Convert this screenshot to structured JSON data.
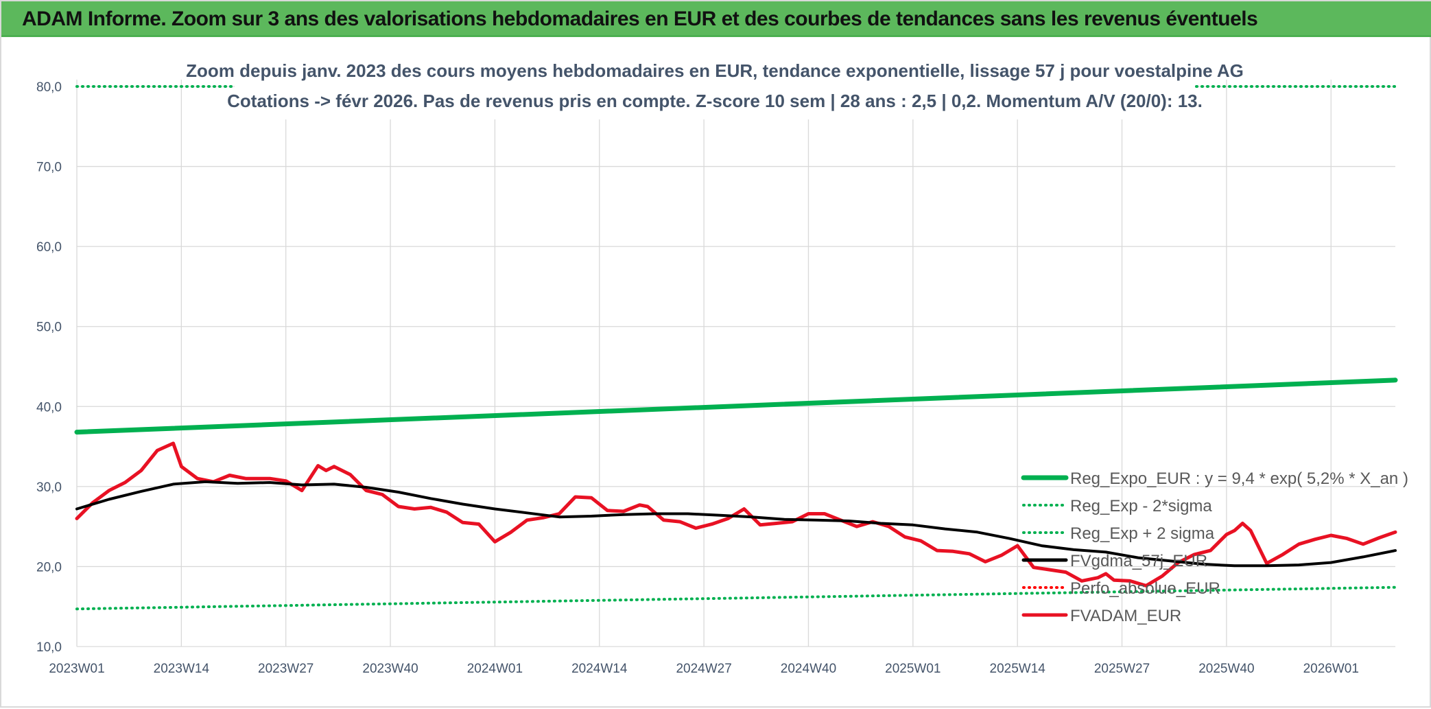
{
  "banner": {
    "title": "ADAM Informe. Zoom sur 3 ans des valorisations hebdomadaires en EUR et des courbes de tendances sans les revenus éventuels"
  },
  "colors": {
    "banner_bg": "#5cb85c",
    "reg_expo": "#00b050",
    "fvgdma": "#000000",
    "fvadam": "#e81123",
    "perfo": "#ff0000",
    "grid": "#d9d9d9",
    "axis_text": "#44546a"
  },
  "chart_data": {
    "type": "line",
    "title_lines": [
      "Zoom depuis janv. 2023 des cours moyens hebdomadaires en EUR, tendance exponentielle, lissage 57 j pour voestalpine AG",
      "Cotations -> févr 2026. Pas de revenus pris en compte. Z-score 10 sem | 28 ans : 2,5 | 0,2. Momentum A/V (20/0): 13."
    ],
    "ylim": [
      10,
      80
    ],
    "y_ticks": [
      "10,0",
      "20,0",
      "30,0",
      "40,0",
      "50,0",
      "60,0",
      "70,0",
      "80,0"
    ],
    "x_ticks": [
      {
        "index": 0,
        "label": "2023W01"
      },
      {
        "index": 13,
        "label": "2023W14"
      },
      {
        "index": 26,
        "label": "2023W27"
      },
      {
        "index": 39,
        "label": "2023W40"
      },
      {
        "index": 52,
        "label": "2024W01"
      },
      {
        "index": 65,
        "label": "2024W14"
      },
      {
        "index": 78,
        "label": "2024W27"
      },
      {
        "index": 91,
        "label": "2024W40"
      },
      {
        "index": 104,
        "label": "2025W01"
      },
      {
        "index": 117,
        "label": "2025W14"
      },
      {
        "index": 130,
        "label": "2025W27"
      },
      {
        "index": 143,
        "label": "2025W40"
      },
      {
        "index": 156,
        "label": "2026W01"
      }
    ],
    "x_count": 165,
    "grid": true,
    "legend_position": "right",
    "series": [
      {
        "name": "Reg_Expo_EUR : y = 9,4 * exp( 5,2% *  X_an )",
        "style": "solid-thick",
        "color": "#00b050",
        "points": [
          [
            0,
            36.8
          ],
          [
            164,
            43.3
          ]
        ]
      },
      {
        "name": "Reg_Exp - 2*sigma",
        "style": "dotted",
        "color": "#00b050",
        "points": [
          [
            0,
            14.7
          ],
          [
            164,
            17.4
          ]
        ]
      },
      {
        "name": "Reg_Exp + 2 sigma",
        "style": "dotted",
        "color": "#00b050",
        "points": [
          [
            0,
            80.0
          ],
          [
            164,
            80.0
          ]
        ]
      },
      {
        "name": "FVgdma_57j_EUR",
        "style": "solid",
        "color": "#000000",
        "points": [
          [
            0,
            27.2
          ],
          [
            4,
            28.4
          ],
          [
            8,
            29.4
          ],
          [
            12,
            30.3
          ],
          [
            16,
            30.6
          ],
          [
            20,
            30.4
          ],
          [
            24,
            30.5
          ],
          [
            28,
            30.2
          ],
          [
            32,
            30.3
          ],
          [
            36,
            29.9
          ],
          [
            40,
            29.3
          ],
          [
            44,
            28.5
          ],
          [
            48,
            27.8
          ],
          [
            52,
            27.2
          ],
          [
            56,
            26.7
          ],
          [
            60,
            26.2
          ],
          [
            64,
            26.3
          ],
          [
            68,
            26.5
          ],
          [
            72,
            26.6
          ],
          [
            76,
            26.6
          ],
          [
            80,
            26.4
          ],
          [
            84,
            26.2
          ],
          [
            88,
            25.9
          ],
          [
            92,
            25.8
          ],
          [
            96,
            25.7
          ],
          [
            100,
            25.4
          ],
          [
            104,
            25.2
          ],
          [
            108,
            24.7
          ],
          [
            112,
            24.3
          ],
          [
            116,
            23.5
          ],
          [
            120,
            22.6
          ],
          [
            124,
            22.1
          ],
          [
            128,
            21.8
          ],
          [
            132,
            21.1
          ],
          [
            136,
            20.7
          ],
          [
            140,
            20.3
          ],
          [
            144,
            20.1
          ],
          [
            148,
            20.1
          ],
          [
            152,
            20.2
          ],
          [
            156,
            20.5
          ],
          [
            160,
            21.2
          ],
          [
            164,
            22.0
          ]
        ]
      },
      {
        "name": "Perfo_absolue_EUR",
        "style": "dotted",
        "color": "#ff0000",
        "points": []
      },
      {
        "name": "FVADAM_EUR",
        "style": "solid",
        "color": "#e81123",
        "points": [
          [
            0,
            26.0
          ],
          [
            2,
            28.0
          ],
          [
            4,
            29.5
          ],
          [
            6,
            30.5
          ],
          [
            8,
            32.0
          ],
          [
            10,
            34.5
          ],
          [
            12,
            35.4
          ],
          [
            13,
            32.5
          ],
          [
            15,
            31.0
          ],
          [
            17,
            30.6
          ],
          [
            19,
            31.4
          ],
          [
            21,
            31.0
          ],
          [
            24,
            31.0
          ],
          [
            26,
            30.7
          ],
          [
            28,
            29.5
          ],
          [
            30,
            32.6
          ],
          [
            31,
            32.0
          ],
          [
            32,
            32.5
          ],
          [
            34,
            31.5
          ],
          [
            36,
            29.5
          ],
          [
            38,
            29.0
          ],
          [
            40,
            27.5
          ],
          [
            42,
            27.2
          ],
          [
            44,
            27.4
          ],
          [
            46,
            26.8
          ],
          [
            48,
            25.5
          ],
          [
            50,
            25.3
          ],
          [
            52,
            23.1
          ],
          [
            54,
            24.3
          ],
          [
            56,
            25.8
          ],
          [
            58,
            26.1
          ],
          [
            60,
            26.6
          ],
          [
            62,
            28.7
          ],
          [
            64,
            28.6
          ],
          [
            66,
            27.0
          ],
          [
            68,
            26.9
          ],
          [
            70,
            27.7
          ],
          [
            71,
            27.5
          ],
          [
            73,
            25.8
          ],
          [
            75,
            25.6
          ],
          [
            77,
            24.8
          ],
          [
            79,
            25.3
          ],
          [
            81,
            26.0
          ],
          [
            83,
            27.2
          ],
          [
            85,
            25.2
          ],
          [
            87,
            25.4
          ],
          [
            89,
            25.6
          ],
          [
            91,
            26.6
          ],
          [
            93,
            26.6
          ],
          [
            95,
            25.8
          ],
          [
            97,
            25.0
          ],
          [
            99,
            25.6
          ],
          [
            101,
            25.0
          ],
          [
            103,
            23.7
          ],
          [
            105,
            23.2
          ],
          [
            107,
            22.0
          ],
          [
            109,
            21.9
          ],
          [
            111,
            21.6
          ],
          [
            113,
            20.6
          ],
          [
            115,
            21.4
          ],
          [
            117,
            22.6
          ],
          [
            119,
            19.9
          ],
          [
            121,
            19.6
          ],
          [
            123,
            19.3
          ],
          [
            125,
            18.2
          ],
          [
            127,
            18.6
          ],
          [
            128,
            19.1
          ],
          [
            129,
            18.3
          ],
          [
            131,
            18.2
          ],
          [
            133,
            17.6
          ],
          [
            135,
            18.8
          ],
          [
            137,
            20.5
          ],
          [
            139,
            21.5
          ],
          [
            141,
            22.0
          ],
          [
            143,
            24.0
          ],
          [
            144,
            24.5
          ],
          [
            145,
            25.4
          ],
          [
            146,
            24.5
          ],
          [
            148,
            20.4
          ],
          [
            150,
            21.5
          ],
          [
            152,
            22.8
          ],
          [
            154,
            23.4
          ],
          [
            156,
            23.9
          ],
          [
            158,
            23.5
          ],
          [
            160,
            22.8
          ],
          [
            162,
            23.6
          ],
          [
            164,
            24.3
          ]
        ]
      }
    ]
  },
  "legend": {
    "items": [
      {
        "label": "Reg_Expo_EUR : y = 9,4 * exp( 5,2% *  X_an )",
        "style": "solid-thick",
        "color": "#00b050"
      },
      {
        "label": "Reg_Exp - 2*sigma",
        "style": "dotted",
        "color": "#00b050"
      },
      {
        "label": "Reg_Exp + 2 sigma",
        "style": "dotted",
        "color": "#00b050"
      },
      {
        "label": "FVgdma_57j_EUR",
        "style": "solid",
        "color": "#000000"
      },
      {
        "label": "Perfo_absolue_EUR",
        "style": "dotted",
        "color": "#ff0000"
      },
      {
        "label": "FVADAM_EUR",
        "style": "solid",
        "color": "#e81123"
      }
    ]
  }
}
